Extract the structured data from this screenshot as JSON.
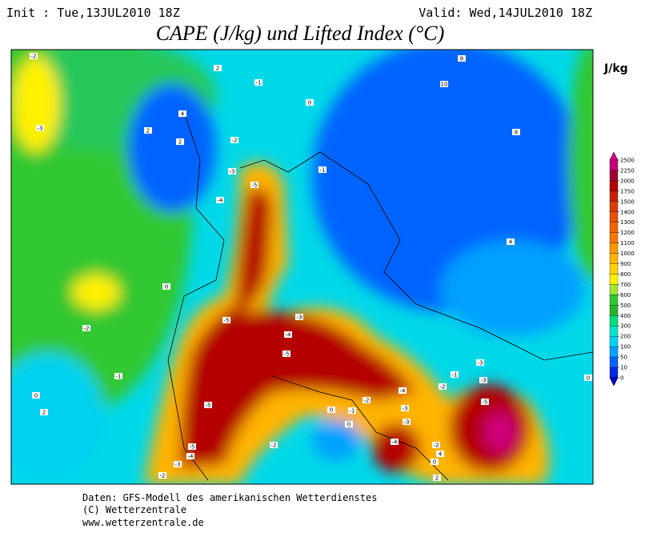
{
  "header": {
    "init": "Init : Tue,13JUL2010 18Z",
    "valid": "Valid: Wed,14JUL2010 18Z",
    "title": "CAPE (J/kg) und Lifted Index (°C)",
    "unit": "J/kg"
  },
  "colorbar": {
    "levels": [
      2500,
      2250,
      2000,
      1750,
      1500,
      1400,
      1300,
      1200,
      1100,
      1000,
      900,
      800,
      700,
      600,
      500,
      400,
      300,
      200,
      100,
      50,
      10,
      0
    ],
    "colors": [
      "#e0008c",
      "#c8007a",
      "#a00032",
      "#b40000",
      "#c81e00",
      "#dc3c00",
      "#e65000",
      "#f06400",
      "#f57800",
      "#fa9600",
      "#ffb400",
      "#ffd200",
      "#fff000",
      "#a0e632",
      "#32c832",
      "#28b428",
      "#00dc78",
      "#00e6c8",
      "#00d2f0",
      "#00a0ff",
      "#0064ff",
      "#0028e6",
      "#0000c8"
    ]
  },
  "contour_labels": [
    -2,
    2,
    -1,
    0,
    8,
    10,
    4,
    2,
    2,
    -3,
    -2,
    -1,
    -3,
    -5,
    -4,
    8,
    4,
    0,
    -2,
    -5,
    -3,
    -4,
    -5,
    -1,
    0,
    -1,
    -3,
    -3,
    -2,
    -4,
    -2,
    -5,
    -1,
    0,
    -3,
    -3,
    -5,
    -4,
    -2,
    -5,
    -4,
    -3,
    -2,
    -2,
    0,
    2,
    2,
    4,
    0,
    0
  ],
  "footer": [
    "Daten: GFS-Modell des amerikanischen Wetterdienstes",
    "(C) Wetterzentrale",
    "www.wetterzentrale.de"
  ]
}
